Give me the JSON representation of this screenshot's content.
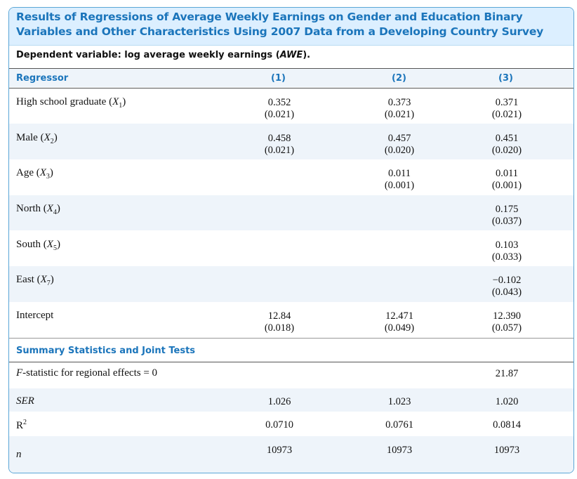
{
  "title": "Results of Regressions of Average Weekly Earnings on Gender and Education Binary Variables and Other Characteristics Using 2007 Data from a Developing Country Survey",
  "dependent_variable": "Dependent variable: log average weekly earnings (AWE).",
  "header": {
    "regressor": "Regressor",
    "col1": "(1)",
    "col2": "(2)",
    "col3": "(3)"
  },
  "rows": [
    {
      "label": "High school graduate",
      "var": "X",
      "sub": "1",
      "c1": "0.352",
      "c1se": "(0.021)",
      "c2": "0.373",
      "c2se": "(0.021)",
      "c3": "0.371",
      "c3se": "(0.021)"
    },
    {
      "label": "Male",
      "var": "X",
      "sub": "2",
      "c1": "0.458",
      "c1se": "(0.021)",
      "c2": "0.457",
      "c2se": "(0.020)",
      "c3": "0.451",
      "c3se": "(0.020)"
    },
    {
      "label": "Age",
      "var": "X",
      "sub": "3",
      "c1": "",
      "c1se": "",
      "c2": "0.011",
      "c2se": "(0.001)",
      "c3": "0.011",
      "c3se": "(0.001)"
    },
    {
      "label": "North",
      "var": "X",
      "sub": "4",
      "c1": "",
      "c1se": "",
      "c2": "",
      "c2se": "",
      "c3": "0.175",
      "c3se": "(0.037)"
    },
    {
      "label": "South",
      "var": "X",
      "sub": "5",
      "c1": "",
      "c1se": "",
      "c2": "",
      "c2se": "",
      "c3": "0.103",
      "c3se": "(0.033)"
    },
    {
      "label": "East",
      "var": "X",
      "sub": "7",
      "c1": "",
      "c1se": "",
      "c2": "",
      "c2se": "",
      "c3": "−0.102",
      "c3se": "(0.043)"
    },
    {
      "label": "Intercept",
      "var": "",
      "sub": "",
      "c1": "12.84",
      "c1se": "(0.018)",
      "c2": "12.471",
      "c2se": "(0.049)",
      "c3": "12.390",
      "c3se": "(0.057)"
    }
  ],
  "summary_header": "Summary Statistics and Joint Tests",
  "fstat": {
    "label": "F",
    "label_rest": "-statistic for regional effects = 0",
    "c1": "",
    "c2": "",
    "c3": "21.87"
  },
  "ser": {
    "label": "SER",
    "c1": "1.026",
    "c2": "1.023",
    "c3": "1.020"
  },
  "r2": {
    "label": "R",
    "sup": "2",
    "c1": "0.0710",
    "c2": "0.0761",
    "c3": "0.0814"
  },
  "n": {
    "label": "n",
    "c1": "10973",
    "c2": "10973",
    "c3": "10973"
  }
}
